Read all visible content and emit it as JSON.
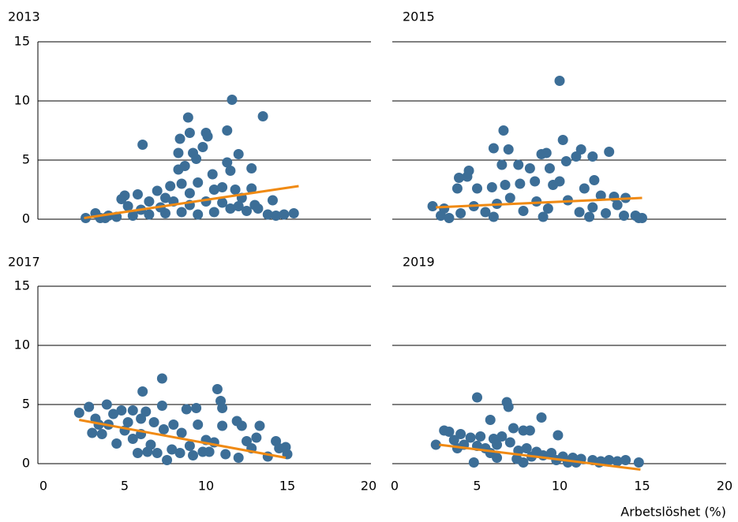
{
  "chart_data": [
    {
      "type": "scatter",
      "title": "2013",
      "color": "#3c6e97",
      "x": [
        6.1,
        8.9,
        9.0,
        8.4,
        10.0,
        10.1,
        11.6,
        11.3,
        13.5,
        8.3,
        9.2,
        9.8,
        9.4,
        12.0,
        11.3,
        11.5,
        12.8,
        8.3,
        8.7,
        10.4,
        13.8,
        14.3,
        14.8,
        15.4,
        14.1,
        3.2,
        4.0,
        4.8,
        5.0,
        5.8,
        6.5,
        7.0,
        7.5,
        7.8,
        8.5,
        9.0,
        9.5,
        10.5,
        11.0,
        11.8,
        12.2,
        12.8,
        13.0,
        2.6,
        3.5,
        4.5,
        5.5,
        6.5,
        7.5,
        8.5,
        9.5,
        10.5,
        11.5,
        12.5,
        13.2,
        6.0,
        7.2,
        9.0,
        10.0,
        11.0,
        12.0,
        5.2,
        8.0,
        3.8
      ],
      "values": [
        6.3,
        8.6,
        7.3,
        6.8,
        7.3,
        7.0,
        10.1,
        7.5,
        8.7,
        5.6,
        5.6,
        6.1,
        5.1,
        5.5,
        4.8,
        4.1,
        4.3,
        4.2,
        4.5,
        3.8,
        0.4,
        0.3,
        0.4,
        0.5,
        1.6,
        0.5,
        0.3,
        1.7,
        2.0,
        2.1,
        1.5,
        2.4,
        1.8,
        2.8,
        3.0,
        2.2,
        3.1,
        2.5,
        2.7,
        2.5,
        1.8,
        2.6,
        1.2,
        0.1,
        0.1,
        0.2,
        0.3,
        0.4,
        0.5,
        0.6,
        0.4,
        0.6,
        0.9,
        0.7,
        0.9,
        0.8,
        1.0,
        1.2,
        1.5,
        1.4,
        1.1,
        1.1,
        1.5,
        0.1
      ],
      "trend": {
        "x": [
          2.5,
          15.7
        ],
        "values": [
          0.1,
          2.8
        ],
        "color": "#f08a13"
      },
      "xlim": [
        0,
        20
      ],
      "ylim": [
        0,
        15
      ],
      "yticks": [
        0,
        5,
        10,
        15
      ],
      "show_ytick_labels": true,
      "grid": true
    },
    {
      "type": "scatter",
      "title": "2015",
      "color": "#3c6e97",
      "x": [
        10.0,
        6.6,
        10.2,
        6.0,
        6.9,
        8.9,
        9.2,
        11.3,
        11.0,
        12.0,
        13.0,
        9.4,
        6.5,
        7.5,
        4.5,
        4.4,
        3.9,
        8.2,
        10.4,
        10.0,
        12.1,
        3.8,
        5.0,
        5.9,
        6.7,
        7.6,
        8.5,
        9.6,
        11.5,
        12.5,
        13.3,
        14.0,
        13.5,
        14.6,
        15.0,
        14.8,
        2.3,
        2.8,
        3.3,
        4.0,
        4.8,
        5.5,
        6.2,
        7.0,
        7.8,
        8.6,
        9.3,
        10.5,
        11.2,
        12.0,
        12.8,
        3.0,
        6.0,
        9.0,
        11.8,
        13.9
      ],
      "values": [
        11.7,
        7.5,
        6.7,
        6.0,
        5.9,
        5.5,
        5.6,
        5.9,
        5.3,
        5.3,
        5.7,
        4.3,
        4.6,
        4.6,
        4.1,
        3.6,
        3.5,
        4.3,
        4.9,
        3.2,
        3.3,
        2.6,
        2.6,
        2.7,
        2.9,
        3.0,
        3.2,
        2.9,
        2.6,
        2.0,
        1.9,
        1.8,
        1.2,
        0.3,
        0.1,
        0.1,
        1.1,
        0.3,
        0.1,
        0.5,
        1.1,
        0.6,
        1.3,
        1.8,
        0.7,
        1.5,
        0.9,
        1.6,
        0.6,
        1.0,
        0.5,
        0.9,
        0.2,
        0.2,
        0.2,
        0.3
      ],
      "trend": {
        "x": [
          2.5,
          15.0
        ],
        "values": [
          1.0,
          1.8
        ],
        "color": "#f08a13"
      },
      "xlim": [
        0,
        20
      ],
      "ylim": [
        0,
        15
      ],
      "yticks": [
        0,
        5,
        10,
        15
      ],
      "show_ytick_labels": false,
      "grid": true
    },
    {
      "type": "scatter",
      "title": "2017",
      "color": "#3c6e97",
      "x": [
        7.3,
        6.1,
        10.7,
        10.9,
        11.0,
        7.3,
        8.8,
        9.4,
        2.2,
        2.8,
        3.9,
        4.8,
        5.5,
        6.3,
        3.2,
        4.0,
        3.0,
        3.6,
        4.5,
        5.5,
        6.0,
        6.8,
        7.4,
        8.0,
        8.5,
        9.0,
        9.5,
        10.0,
        10.5,
        11.0,
        11.9,
        12.2,
        12.5,
        13.1,
        13.3,
        14.3,
        14.5,
        14.9,
        15.0,
        13.8,
        12.0,
        11.2,
        10.2,
        9.2,
        8.4,
        7.6,
        7.0,
        6.4,
        5.8,
        6.6,
        7.9,
        9.8,
        12.8,
        5.0,
        3.4,
        4.3,
        5.2,
        6.0
      ],
      "values": [
        7.2,
        6.1,
        6.3,
        5.3,
        4.7,
        4.9,
        4.6,
        4.7,
        4.3,
        4.8,
        5.0,
        4.5,
        4.5,
        4.4,
        3.8,
        3.3,
        2.6,
        2.5,
        1.7,
        2.1,
        3.8,
        3.5,
        2.9,
        3.3,
        2.6,
        1.5,
        3.3,
        2.0,
        1.8,
        3.2,
        3.6,
        3.2,
        1.9,
        2.2,
        3.2,
        1.9,
        1.3,
        1.4,
        0.8,
        0.6,
        0.5,
        0.8,
        1.0,
        0.7,
        0.9,
        0.3,
        0.9,
        1.0,
        0.9,
        1.6,
        1.2,
        1.0,
        1.3,
        2.8,
        3.3,
        4.2,
        3.5,
        2.5
      ],
      "trend": {
        "x": [
          2.2,
          14.9
        ],
        "values": [
          3.7,
          0.5
        ],
        "color": "#f08a13"
      },
      "xlim": [
        0,
        20
      ],
      "xticks": [
        0,
        5,
        10,
        15,
        20
      ],
      "ylim": [
        0,
        15
      ],
      "yticks": [
        0,
        5,
        10,
        15
      ],
      "show_ytick_labels": true,
      "grid": true
    },
    {
      "type": "scatter",
      "title": "2019",
      "color": "#3c6e97",
      "xlabel": "Arbetslöshet (%)",
      "x": [
        5.0,
        6.8,
        6.9,
        8.9,
        5.8,
        7.2,
        7.8,
        8.2,
        9.9,
        3.0,
        3.3,
        4.0,
        4.6,
        5.2,
        6.0,
        6.5,
        3.6,
        2.5,
        4.2,
        5.0,
        5.5,
        6.2,
        7.0,
        7.5,
        8.0,
        8.6,
        9.0,
        9.5,
        10.2,
        10.8,
        11.3,
        12.0,
        12.5,
        13.0,
        13.5,
        14.0,
        14.8,
        4.8,
        6.2,
        7.4,
        8.3,
        9.8,
        11.0,
        12.4,
        3.8,
        5.8,
        7.8,
        10.5
      ],
      "values": [
        5.6,
        5.2,
        4.8,
        3.9,
        3.7,
        3.0,
        2.8,
        2.8,
        2.4,
        2.8,
        2.7,
        2.5,
        2.2,
        2.3,
        2.1,
        2.3,
        2.0,
        1.6,
        1.6,
        1.5,
        1.3,
        1.6,
        1.8,
        1.1,
        1.3,
        1.0,
        0.7,
        0.9,
        0.6,
        0.5,
        0.4,
        0.3,
        0.2,
        0.3,
        0.2,
        0.3,
        0.1,
        0.1,
        0.5,
        0.4,
        0.6,
        0.3,
        0.1,
        0.1,
        1.3,
        0.9,
        0.1,
        0.1
      ],
      "trend": {
        "x": [
          2.7,
          14.9
        ],
        "values": [
          1.6,
          -0.5
        ],
        "color": "#f08a13"
      },
      "xlim": [
        0,
        20
      ],
      "xticks": [
        0,
        5,
        10,
        15,
        20
      ],
      "ylim": [
        0,
        15
      ],
      "yticks": [
        0,
        5,
        10,
        15
      ],
      "show_ytick_labels": false,
      "grid": true
    }
  ]
}
